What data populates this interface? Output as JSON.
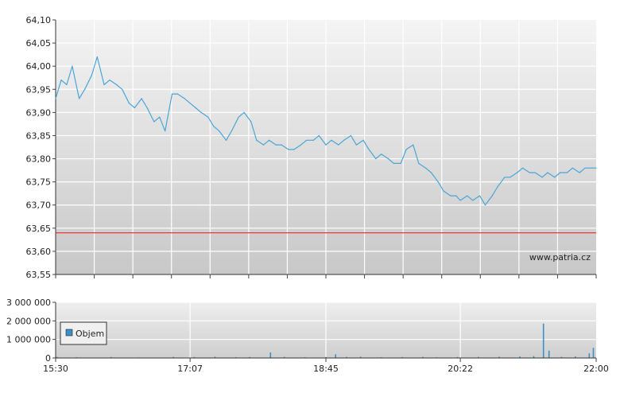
{
  "chart_data": [
    {
      "type": "line",
      "title": "",
      "xlabel": "",
      "ylabel": "",
      "ylim": [
        63.55,
        64.1
      ],
      "y_ticks": [
        "64,10",
        "64,05",
        "64,00",
        "63,95",
        "63,90",
        "63,85",
        "63,80",
        "63,75",
        "63,70",
        "63,65",
        "63,60",
        "63,55"
      ],
      "y_tick_values": [
        64.1,
        64.05,
        64.0,
        63.95,
        63.9,
        63.85,
        63.8,
        63.75,
        63.7,
        63.65,
        63.6,
        63.55
      ],
      "x_range": [
        "15:30",
        "22:00"
      ],
      "reference_line": {
        "value": 63.64,
        "color": "#e83a3a"
      },
      "series": [
        {
          "color": "#4aa6d6",
          "x": [
            "15:30",
            "15:34",
            "15:38",
            "15:42",
            "15:47",
            "15:51",
            "15:56",
            "16:00",
            "16:05",
            "16:09",
            "16:14",
            "16:18",
            "16:23",
            "16:27",
            "16:32",
            "16:36",
            "16:41",
            "16:45",
            "16:49",
            "16:54",
            "16:58",
            "17:03",
            "17:07",
            "17:11",
            "17:15",
            "17:20",
            "17:24",
            "17:28",
            "17:33",
            "17:37",
            "17:42",
            "17:46",
            "17:51",
            "17:55",
            "18:00",
            "18:04",
            "18:09",
            "18:13",
            "18:18",
            "18:22",
            "18:27",
            "18:31",
            "18:36",
            "18:40",
            "18:45",
            "18:49",
            "18:54",
            "18:58",
            "19:03",
            "19:07",
            "19:12",
            "19:16",
            "19:21",
            "19:25",
            "19:30",
            "19:34",
            "19:39",
            "19:43",
            "19:48",
            "19:52",
            "19:57",
            "20:01",
            "20:06",
            "20:10",
            "20:15",
            "20:19",
            "20:22",
            "20:27",
            "20:31",
            "20:36",
            "20:40",
            "20:45",
            "20:49",
            "20:54",
            "20:58",
            "21:03",
            "21:07",
            "21:12",
            "21:16",
            "21:21",
            "21:25",
            "21:30",
            "21:34",
            "21:39",
            "21:43",
            "21:48",
            "21:52",
            "21:57",
            "22:00"
          ],
          "values": [
            63.93,
            63.97,
            63.96,
            64.0,
            63.93,
            63.95,
            63.98,
            64.02,
            63.96,
            63.97,
            63.96,
            63.95,
            63.92,
            63.91,
            63.93,
            63.91,
            63.88,
            63.89,
            63.86,
            63.94,
            63.94,
            63.93,
            63.92,
            63.91,
            63.9,
            63.89,
            63.87,
            63.86,
            63.84,
            63.86,
            63.89,
            63.9,
            63.88,
            63.84,
            63.83,
            63.84,
            63.83,
            63.83,
            63.82,
            63.82,
            63.83,
            63.84,
            63.84,
            63.85,
            63.83,
            63.84,
            63.83,
            63.84,
            63.85,
            63.83,
            63.84,
            63.82,
            63.8,
            63.81,
            63.8,
            63.79,
            63.79,
            63.82,
            63.83,
            63.79,
            63.78,
            63.77,
            63.75,
            63.73,
            63.72,
            63.72,
            63.71,
            63.72,
            63.71,
            63.72,
            63.7,
            63.72,
            63.74,
            63.76,
            63.76,
            63.77,
            63.78,
            63.77,
            63.77,
            63.76,
            63.77,
            63.76,
            63.77,
            63.77,
            63.78,
            63.77,
            63.78,
            63.78,
            63.78
          ]
        }
      ]
    },
    {
      "type": "bar",
      "title": "",
      "xlabel": "",
      "ylabel": "",
      "ylim": [
        0,
        3000000
      ],
      "y_ticks": [
        "3 000 000",
        "2 000 000",
        "1 000 000",
        "0"
      ],
      "y_tick_values": [
        3000000,
        2000000,
        1000000,
        0
      ],
      "x_ticks": [
        "15:30",
        "17:07",
        "18:45",
        "20:22",
        "22:00"
      ],
      "legend": {
        "label": "Objem",
        "color": "#3d8fc7",
        "placement": "left"
      },
      "series": [
        {
          "name": "Objem",
          "color": "#3d8fc7",
          "x": [
            "15:31",
            "15:45",
            "16:10",
            "16:30",
            "16:55",
            "17:10",
            "17:25",
            "17:40",
            "17:50",
            "18:05",
            "18:15",
            "18:30",
            "18:45",
            "18:52",
            "19:00",
            "19:10",
            "19:25",
            "19:40",
            "19:55",
            "20:05",
            "20:20",
            "20:35",
            "20:50",
            "21:05",
            "21:15",
            "21:22",
            "21:26",
            "21:35",
            "21:45",
            "21:55",
            "21:58"
          ],
          "values": [
            60000,
            40000,
            50000,
            30000,
            60000,
            50000,
            70000,
            40000,
            50000,
            300000,
            60000,
            40000,
            50000,
            200000,
            60000,
            70000,
            40000,
            50000,
            60000,
            40000,
            50000,
            60000,
            70000,
            80000,
            100000,
            1850000,
            400000,
            60000,
            80000,
            250000,
            550000
          ]
        }
      ]
    }
  ],
  "watermark": "www.patria.cz",
  "colors": {
    "plot_top": "#f3f3f3",
    "plot_bottom": "#c9c9c9",
    "axis": "#333333"
  }
}
